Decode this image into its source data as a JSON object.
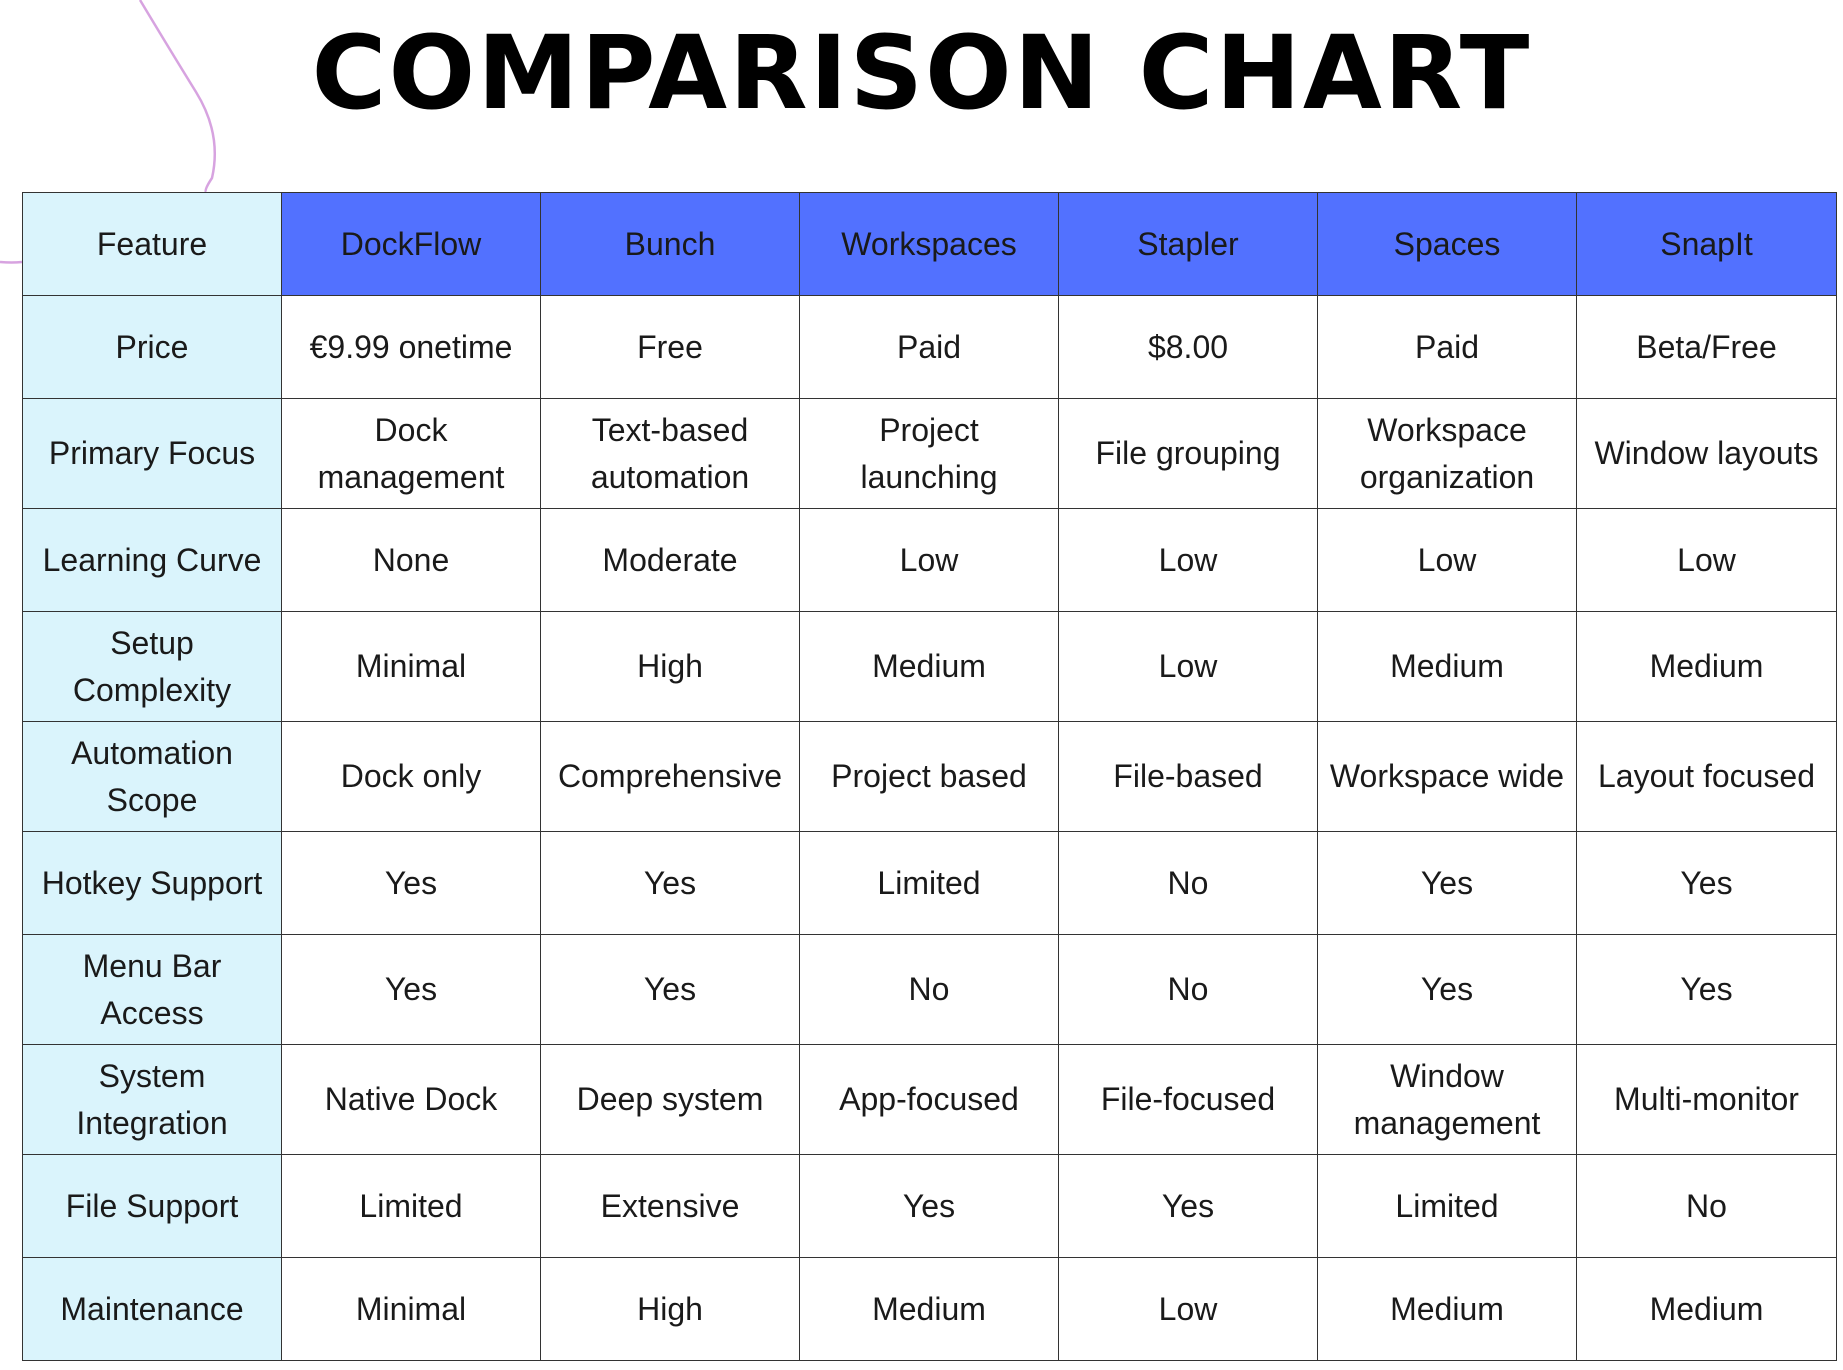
{
  "title": "COMPARISON CHART",
  "colors": {
    "header_background": "#5271ff",
    "feature_column_background": "#daf4fc",
    "decoration_line": "#d7a3e0"
  },
  "table": {
    "columns": [
      "Feature",
      "DockFlow",
      "Bunch",
      "Workspaces",
      "Stapler",
      "Spaces",
      "SnapIt"
    ],
    "rows": [
      {
        "feature": "Price",
        "values": [
          "€9.99 onetime",
          "Free",
          "Paid",
          "$8.00",
          "Paid",
          "Beta/Free"
        ]
      },
      {
        "feature": "Primary Focus",
        "values": [
          "Dock management",
          "Text-based automation",
          "Project launching",
          "File grouping",
          "Workspace organization",
          "Window layouts"
        ]
      },
      {
        "feature": "Learning Curve",
        "values": [
          "None",
          "Moderate",
          "Low",
          "Low",
          "Low",
          "Low"
        ]
      },
      {
        "feature": "Setup Complexity",
        "values": [
          "Minimal",
          "High",
          "Medium",
          "Low",
          "Medium",
          "Medium"
        ]
      },
      {
        "feature": "Automation Scope",
        "values": [
          "Dock only",
          "Comprehensive",
          "Project based",
          "File-based",
          "Workspace wide",
          "Layout focused"
        ]
      },
      {
        "feature": "Hotkey Support",
        "values": [
          "Yes",
          "Yes",
          "Limited",
          "No",
          "Yes",
          "Yes"
        ]
      },
      {
        "feature": "Menu Bar Access",
        "values": [
          "Yes",
          "Yes",
          "No",
          "No",
          "Yes",
          "Yes"
        ]
      },
      {
        "feature": "System Integration",
        "values": [
          "Native Dock",
          "Deep system",
          "App-focused",
          "File-focused",
          "Window management",
          "Multi-monitor"
        ]
      },
      {
        "feature": "File Support",
        "values": [
          "Limited",
          "Extensive",
          "Yes",
          "Yes",
          "Limited",
          "No"
        ]
      },
      {
        "feature": "Maintenance",
        "values": [
          "Minimal",
          "High",
          "Medium",
          "Low",
          "Medium",
          "Medium"
        ]
      }
    ]
  }
}
